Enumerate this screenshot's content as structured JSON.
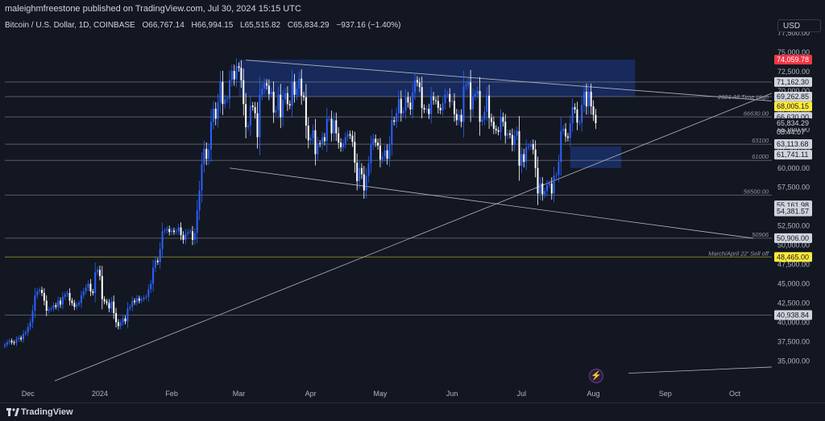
{
  "header": {
    "publish_line": "maleighmfreestone published on TradingView.com, Jul 30, 2024 15:15 UTC"
  },
  "symbol": {
    "name": "Bitcoin / U.S. Dollar, 1D, COINBASE",
    "open": "O66,767.14",
    "high": "H66,994.15",
    "low": "L65,515.82",
    "close": "C65,834.29",
    "change": "−937.16 (−1.40%)"
  },
  "currency": "USD",
  "footer": {
    "brand": "TradingView"
  },
  "colors": {
    "background": "#131722",
    "up": "#2962ff",
    "down": "#ffffff",
    "zone": "#1e3a8a",
    "red_label": "#f23645",
    "yellow_label": "#ffeb3b",
    "trendline": "#b2b5be",
    "axis_text": "#b2b5be"
  },
  "icons": {
    "brand": "tradingview-logo-icon",
    "alert": "lightning-icon"
  },
  "chart_data": {
    "type": "candlestick",
    "ylim": [
      32000,
      79500
    ],
    "y_ticks": [
      "77,500.00",
      "75,000.00",
      "72,500.00",
      "70,000.00",
      "67,500.00",
      "65,000.00",
      "62,500.00",
      "60,000.00",
      "57,500.00",
      "55,000.00",
      "52,500.00",
      "50,000.00",
      "47,500.00",
      "45,000.00",
      "42,500.00",
      "40,000.00",
      "37,500.00",
      "35,000.00"
    ],
    "x_range": [
      "2023-11-21",
      "2024-10-17"
    ],
    "x_ticks": [
      {
        "label": "Dec",
        "date": "2023-12-01"
      },
      {
        "label": "2024",
        "date": "2024-01-01"
      },
      {
        "label": "Feb",
        "date": "2024-02-01"
      },
      {
        "label": "Mar",
        "date": "2024-03-01"
      },
      {
        "label": "Apr",
        "date": "2024-04-01"
      },
      {
        "label": "May",
        "date": "2024-05-01"
      },
      {
        "label": "Jun",
        "date": "2024-06-01"
      },
      {
        "label": "Jul",
        "date": "2024-07-01"
      },
      {
        "label": "Aug",
        "date": "2024-08-01"
      },
      {
        "label": "Sep",
        "date": "2024-09-01"
      },
      {
        "label": "Oct",
        "date": "2024-10-01"
      }
    ],
    "series_first_date": "2023-11-21",
    "closes": [
      37100,
      37400,
      37600,
      37400,
      37300,
      37800,
      38000,
      37800,
      38500,
      38700,
      39400,
      40000,
      41500,
      43500,
      44000,
      44200,
      43800,
      42800,
      41500,
      41700,
      41800,
      42200,
      42000,
      42800,
      42300,
      43300,
      43600,
      43800,
      42800,
      42500,
      42000,
      42300,
      42500,
      43500,
      44000,
      44500,
      45000,
      44000,
      43800,
      46500,
      46800,
      46000,
      43000,
      42700,
      42500,
      41800,
      42700,
      41200,
      40000,
      39500,
      40000,
      40500,
      40100,
      41800,
      42000,
      42800,
      42600,
      43100,
      42800,
      43000,
      43200,
      43300,
      44300,
      45000,
      47100,
      48000,
      47800,
      49500,
      51800,
      51900,
      52100,
      51700,
      51900,
      51700,
      51800,
      52300,
      51300,
      50700,
      51500,
      51700,
      51800,
      50700,
      51600,
      54500,
      57100,
      60500,
      62500,
      61200,
      62400,
      66000,
      67700,
      66400,
      68500,
      71200,
      68300,
      68900,
      69000,
      71400,
      72600,
      71500,
      73200,
      73000,
      71400,
      68300,
      65300,
      65500,
      68100,
      67900,
      67100,
      64000,
      69500,
      70300,
      71000,
      70700,
      69600,
      69900,
      67200,
      67500,
      69500,
      66600,
      68900,
      69700,
      68300,
      68100,
      71200,
      69500,
      70300,
      71600,
      69400,
      69200,
      65500,
      63600,
      63900,
      64900,
      61800,
      63200,
      63100,
      64000,
      63500,
      66400,
      66400,
      64500,
      66200,
      64500,
      63300,
      62700,
      63200,
      64000,
      64400,
      64200,
      63400,
      60700,
      58300,
      60000,
      59200,
      57100,
      59000,
      60600,
      63000,
      63800,
      63300,
      62900,
      61100,
      61500,
      62300,
      61200,
      63100,
      66200,
      66000,
      67100,
      69000,
      67100,
      67400,
      69200,
      68500,
      67600,
      69800,
      71400,
      71100,
      70500,
      67800,
      67600,
      67700,
      67000,
      69300,
      68800,
      68700,
      67800,
      67500,
      68400,
      69500,
      69600,
      68600,
      68700,
      67000,
      66200,
      66900,
      66000,
      70600,
      70800,
      71100,
      67600,
      69300,
      69600,
      70000,
      66000,
      66300,
      67300,
      69400,
      66500,
      66000,
      65100,
      64900,
      64700,
      66600,
      66000,
      64200,
      64500,
      64300,
      63000,
      64200,
      64800,
      60300,
      61800,
      60800,
      62700,
      62800,
      63100,
      62400,
      60000,
      56700,
      58000,
      56600,
      57000,
      57800,
      58000,
      56700,
      59000,
      59100,
      60800,
      64800,
      65100,
      64100,
      63900,
      65800,
      67900,
      67600,
      65900,
      65900,
      68200,
      69900,
      68000,
      69900,
      68000,
      66900,
      65834
    ]
  },
  "annotations": {
    "h_levels": [
      {
        "price": 71162.3,
        "label": "71,162.30"
      },
      {
        "price": 69262.85,
        "label": "69,262.85"
      },
      {
        "price": 66630.0,
        "label": "66630.00"
      },
      {
        "price": 63100,
        "label": "63100"
      },
      {
        "price": 61000,
        "label": "61000"
      },
      {
        "price": 56500,
        "label": "56500.00"
      },
      {
        "price": 50906,
        "label": "50906"
      },
      {
        "price": 48465,
        "label": "March/April 22' Sell off"
      },
      {
        "price": 40938.84,
        "label": ""
      }
    ],
    "ath_label": "2021 All Time High",
    "price_tags": [
      {
        "price": 74059.78,
        "text": "74,059.78",
        "style": "red"
      },
      {
        "price": 71162.3,
        "text": "71,162.30",
        "style": "gray"
      },
      {
        "price": 69262.85,
        "text": "69,262.85",
        "style": "gray"
      },
      {
        "price": 68005.15,
        "text": "68,005.15",
        "style": "yellow"
      },
      {
        "price": 66630.0,
        "text": "66,630.00",
        "style": "gray"
      },
      {
        "price": 65834.29,
        "text": "65,834.29",
        "style": "dark"
      },
      {
        "price": 63113.68,
        "text": "63,113.68",
        "style": "gray"
      },
      {
        "price": 61741.11,
        "text": "61,741.11",
        "style": "gray"
      },
      {
        "price": 55161.98,
        "text": "55,161.98",
        "style": "gray"
      },
      {
        "price": 54381.57,
        "text": "54,381.57",
        "style": "gray"
      },
      {
        "price": 50906.0,
        "text": "50,906.00",
        "style": "gray"
      },
      {
        "price": 48465.0,
        "text": "48,465.00",
        "style": "yellow"
      },
      {
        "price": 40938.84,
        "text": "40,938.84",
        "style": "gray"
      }
    ],
    "countdown": "08:44:07"
  }
}
